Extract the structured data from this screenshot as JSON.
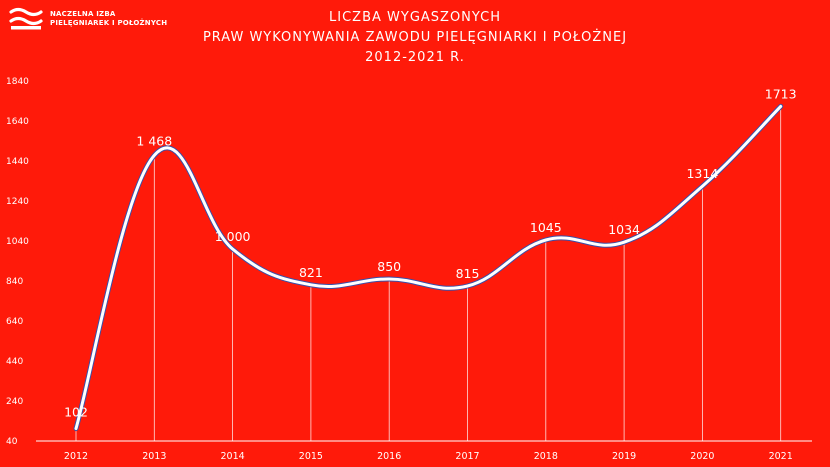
{
  "header": {
    "logo_line1": "NACZELNA IZBA",
    "logo_line2": "PIELĘGNIAREK I POŁOŻNYCH"
  },
  "chart_data": {
    "type": "line",
    "title": [
      "LICZBA WYGASZONYCH",
      "PRAW WYKONYWANIA ZAWODU PIELĘGNIARKI I POŁOŻNEJ",
      "2012-2021 R."
    ],
    "categories": [
      "2012",
      "2013",
      "2014",
      "2015",
      "2016",
      "2017",
      "2018",
      "2019",
      "2020",
      "2021"
    ],
    "values": [
      102,
      1468,
      1000,
      821,
      850,
      815,
      1045,
      1034,
      1314,
      1713
    ],
    "value_labels": [
      "102",
      "1 468",
      "1 000",
      "821",
      "850",
      "815",
      "1045",
      "1034",
      "1314",
      "1713"
    ],
    "yticks": [
      "40",
      "240",
      "440",
      "640",
      "840",
      "1040",
      "1240",
      "1440",
      "1640",
      "1840"
    ],
    "ylim": [
      40,
      1840
    ],
    "xlabel": "",
    "ylabel": "",
    "grid": false,
    "smooth": true,
    "line_color": "#ffffff",
    "line_outline_color": "#3a4fa8",
    "background_color": "#ff1a0a"
  }
}
